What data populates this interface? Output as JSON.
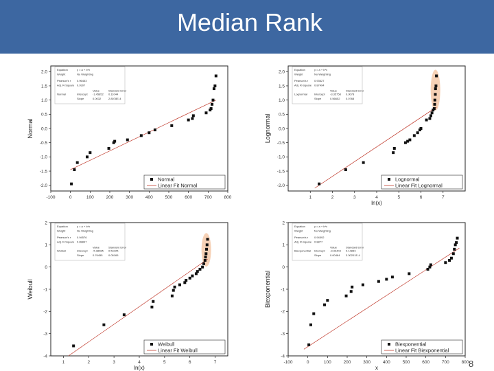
{
  "slide": {
    "title": "Median Rank",
    "page_number": "8"
  },
  "colors": {
    "banner": "#3d67a1",
    "points": "#111111",
    "fit_line": "#c0392b",
    "highlight": "#f4c9a9"
  },
  "chart_data": [
    {
      "type": "scatter",
      "xlabel": "",
      "ylabel": "Normal",
      "xlim": [
        -100,
        800
      ],
      "ylim": [
        -2.2,
        2.2
      ],
      "xticks": [
        "-100",
        "0",
        "100",
        "200",
        "300",
        "400",
        "500",
        "600",
        "700",
        "800"
      ],
      "yticks": [
        "2.0",
        "1.5",
        "1.0",
        "0.5",
        "0.0",
        "-0.5",
        "-1.0",
        "-1.5",
        "-2.0"
      ],
      "x": [
        5,
        20,
        35,
        85,
        100,
        195,
        220,
        225,
        290,
        360,
        400,
        430,
        515,
        600,
        620,
        625,
        690,
        710,
        715,
        720,
        725,
        730,
        735,
        740
      ],
      "y": [
        -1.95,
        -1.45,
        -1.2,
        -1.0,
        -0.85,
        -0.7,
        -0.5,
        -0.45,
        -0.4,
        -0.25,
        -0.15,
        -0.05,
        0.1,
        0.3,
        0.35,
        0.45,
        0.55,
        0.65,
        0.7,
        0.85,
        1.0,
        1.4,
        1.5,
        1.85
      ],
      "fit_line": [
        [
          0,
          -1.45
        ],
        [
          740,
          1.0
        ]
      ],
      "legend": [
        "Normal",
        "Linear Fit Normal"
      ],
      "legend_position": "bottom-right",
      "stats_table": [
        "Equation",
        "y = a + b*x",
        "Weight",
        "No Weighting",
        "Pearson's r",
        "0.96453",
        "Adj. R-Square",
        "0.9307",
        "Value",
        "Standard Error",
        "Normal",
        "Intercept",
        "-1.45852",
        "0.11044",
        "Slope",
        "0.0032",
        "2.8078E-4"
      ]
    },
    {
      "type": "scatter",
      "xlabel": "ln(x)",
      "ylabel": "Lognormal",
      "xlim": [
        0,
        8
      ],
      "ylim": [
        -2.2,
        2.2
      ],
      "xticks": [
        "1",
        "2",
        "3",
        "4",
        "5",
        "6",
        "7"
      ],
      "yticks": [
        "2.0",
        "1.5",
        "1.0",
        "0.5",
        "0.0",
        "-0.5",
        "-1.0",
        "-1.5",
        "-2.0"
      ],
      "x": [
        1.4,
        2.6,
        3.4,
        4.75,
        4.8,
        5.3,
        5.4,
        5.5,
        5.7,
        5.85,
        5.95,
        6.0,
        6.25,
        6.4,
        6.45,
        6.5,
        6.55,
        6.6,
        6.62,
        6.63,
        6.65,
        6.66,
        6.68,
        6.7
      ],
      "y": [
        -1.95,
        -1.45,
        -1.2,
        -0.85,
        -0.7,
        -0.5,
        -0.45,
        -0.4,
        -0.25,
        -0.15,
        -0.05,
        0.0,
        0.3,
        0.35,
        0.45,
        0.55,
        0.65,
        0.7,
        0.85,
        1.0,
        1.2,
        1.4,
        1.5,
        1.85
      ],
      "fit_line": [
        [
          1.2,
          -2.1
        ],
        [
          6.7,
          0.75
        ]
      ],
      "legend": [
        "Lognormal",
        "Linear Fit Lognormal"
      ],
      "legend_position": "bottom-right",
      "highlight": "top-right points",
      "stats_table": [
        "Equation",
        "y = a + b*x",
        "Weight",
        "No Weighting",
        "Pearson's r",
        "0.93627",
        "Adj. R-Square",
        "0.87494",
        "Value",
        "Standard Error",
        "Lognormal",
        "Intercept",
        "-3.35758",
        "0.3078",
        "Slope",
        "0.56652",
        "0.0768"
      ]
    },
    {
      "type": "scatter",
      "xlabel": "ln(x)",
      "ylabel": "Weibull",
      "xlim": [
        0.5,
        7.5
      ],
      "ylim": [
        -4,
        2
      ],
      "xticks": [
        "1",
        "2",
        "3",
        "4",
        "5",
        "6",
        "7"
      ],
      "yticks": [
        "2",
        "1",
        "0",
        "-1",
        "-2",
        "-3",
        "-4"
      ],
      "x": [
        1.4,
        2.6,
        3.4,
        4.5,
        4.55,
        5.3,
        5.35,
        5.4,
        5.6,
        5.8,
        5.85,
        6.0,
        6.1,
        6.25,
        6.3,
        6.4,
        6.5,
        6.55,
        6.6,
        6.62,
        6.64,
        6.66,
        6.68,
        6.7
      ],
      "y": [
        -3.55,
        -2.6,
        -2.15,
        -1.8,
        -1.55,
        -1.3,
        -1.05,
        -0.9,
        -0.8,
        -0.7,
        -0.6,
        -0.5,
        -0.4,
        -0.3,
        -0.2,
        -0.1,
        0.0,
        0.15,
        0.3,
        0.45,
        0.6,
        0.8,
        1.0,
        1.25
      ],
      "fit_line": [
        [
          1.2,
          -4.0
        ],
        [
          6.7,
          0.35
        ]
      ],
      "legend": [
        "Weibull",
        "Linear Fit Weibull"
      ],
      "legend_position": "bottom-right",
      "highlight": "top-right points",
      "stats_table": [
        "Equation",
        "y = a + b*x",
        "Weight",
        "No Weighting",
        "Pearson's r",
        "0.94576",
        "Adj. R-Square",
        "0.88847",
        "Value",
        "Standard Error",
        "Weibull",
        "Intercept",
        "-5.38085",
        "0.54425",
        "Slope",
        "0.76455",
        "0.05165"
      ]
    },
    {
      "type": "scatter",
      "xlabel": "x",
      "ylabel": "Biexponential",
      "xlim": [
        -100,
        800
      ],
      "ylim": [
        -4,
        2
      ],
      "xticks": [
        "-100",
        "0",
        "100",
        "200",
        "300",
        "400",
        "500",
        "600",
        "700",
        "800"
      ],
      "yticks": [
        "2",
        "1",
        "0",
        "-1",
        "-2",
        "-3",
        "-4"
      ],
      "x": [
        5,
        15,
        30,
        85,
        100,
        195,
        220,
        225,
        280,
        360,
        400,
        430,
        515,
        610,
        620,
        625,
        700,
        720,
        730,
        740,
        745,
        750,
        755,
        760
      ],
      "y": [
        -3.5,
        -2.6,
        -2.1,
        -1.7,
        -1.5,
        -1.3,
        -1.1,
        -0.9,
        -0.8,
        -0.65,
        -0.55,
        -0.45,
        -0.3,
        -0.1,
        0.0,
        0.1,
        0.2,
        0.3,
        0.4,
        0.6,
        0.8,
        1.0,
        1.1,
        1.3
      ],
      "fit_line": [
        [
          -20,
          -3.7
        ],
        [
          770,
          0.85
        ]
      ],
      "legend": [
        "Biexponential",
        "Linear Fit Biexponential"
      ],
      "legend_position": "bottom-right",
      "stats_table": [
        "Equation",
        "y = a + b*x",
        "Weight",
        "No Weighting",
        "Pearson's r",
        "0.94592",
        "Adj. R-Square",
        "0.8877",
        "Value",
        "Standard Error",
        "Biexponential",
        "Intercept",
        "-3.33404",
        "0.14833",
        "Slope",
        "0.00484",
        "3.30201E-4"
      ]
    }
  ]
}
